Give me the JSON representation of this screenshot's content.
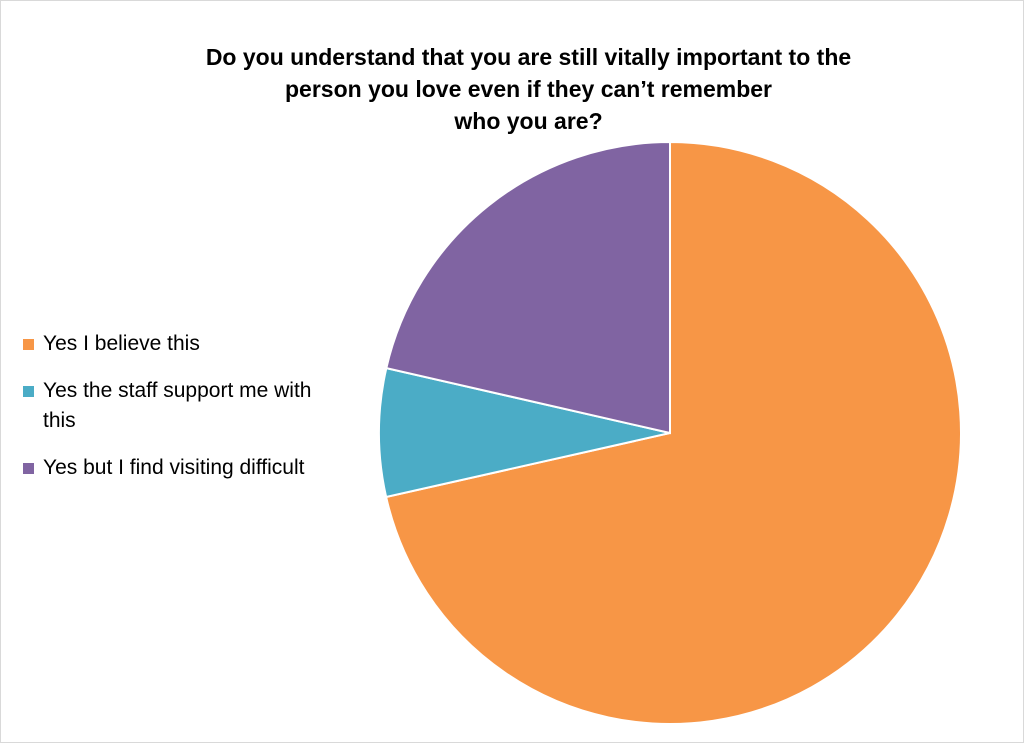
{
  "chart_data": {
    "type": "pie",
    "title": "Do you understand that you are still vitally important to the\nperson you love even if they can’t remember\nwho you are?",
    "categories": [
      "Yes I believe this",
      "Yes the staff support me with this",
      "Yes but I find visiting difficult"
    ],
    "values": [
      71.4,
      7.1,
      21.4
    ],
    "colors": [
      "#f79646",
      "#4bacc6",
      "#8064a2"
    ],
    "legend": "left"
  }
}
